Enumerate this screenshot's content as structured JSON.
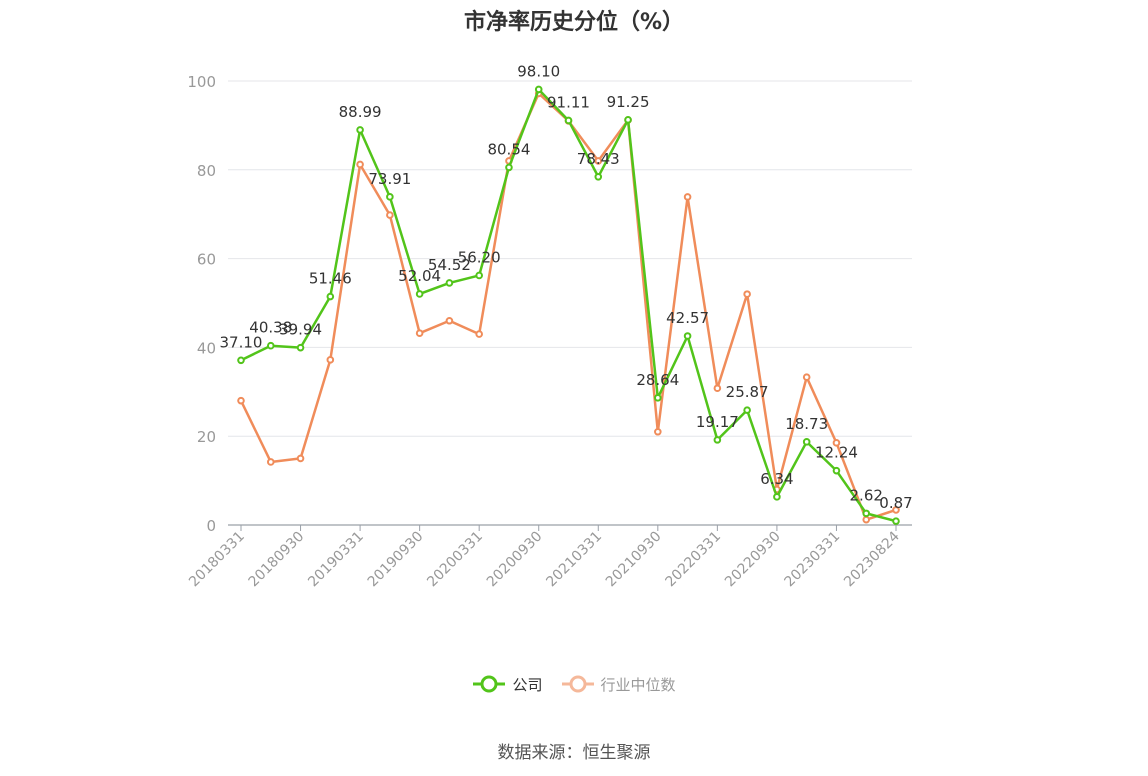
{
  "chart_data": {
    "type": "line",
    "title": "市净率历史分位（%）",
    "x": [
      "20180331",
      "20180630",
      "20180930",
      "20181231",
      "20190331",
      "20190630",
      "20190930",
      "20191231",
      "20200331",
      "20200630",
      "20200930",
      "20201231",
      "20210331",
      "20210630",
      "20210930",
      "20211231",
      "20220331",
      "20220630",
      "20220930",
      "20221231",
      "20230331",
      "20230630",
      "20230824"
    ],
    "x_tick_labels": [
      "20180331",
      "20180930",
      "20190331",
      "20190930",
      "20200331",
      "20200930",
      "20210331",
      "20210930",
      "20220331",
      "20220930",
      "20230331",
      "20230824"
    ],
    "ylim": [
      0,
      100
    ],
    "y_ticks": [
      0,
      20,
      40,
      60,
      80,
      100
    ],
    "grid": true,
    "legend_position": "bottom",
    "series": [
      {
        "name": "公司",
        "color": "#52c41a",
        "values": [
          37.1,
          40.38,
          39.94,
          51.46,
          88.99,
          73.91,
          52.04,
          54.52,
          56.2,
          80.54,
          98.1,
          91.11,
          78.43,
          91.25,
          28.64,
          42.57,
          19.17,
          25.87,
          6.34,
          18.73,
          12.24,
          2.62,
          0.87
        ],
        "labels": [
          "37.10",
          "40.38",
          "39.94",
          "51.46",
          "88.99",
          "73.91",
          "52.04",
          "54.52",
          "56.20",
          "80.54",
          "98.10",
          "91.11",
          "78.43",
          "91.25",
          "28.64",
          "42.57",
          "19.17",
          "25.87",
          "6.34",
          "18.73",
          "12.24",
          "2.62",
          "0.87"
        ]
      },
      {
        "name": "行业中位数",
        "color": "#f08c5a",
        "values": [
          28.0,
          14.2,
          15.0,
          37.2,
          81.2,
          69.8,
          43.2,
          46.0,
          43.0,
          82.0,
          97.2,
          91.0,
          82.0,
          91.2,
          21.0,
          73.9,
          30.8,
          52.0,
          8.0,
          33.3,
          18.5,
          1.2,
          3.4
        ]
      }
    ]
  },
  "source": "数据来源：恒生聚源"
}
